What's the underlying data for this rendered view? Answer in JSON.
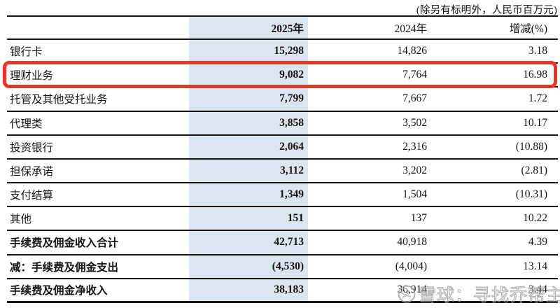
{
  "meta": {
    "unit_note": "(除另有标明外，人民币百万元)"
  },
  "table": {
    "columns": [
      "",
      "2025年",
      "2024年",
      "增减(%)"
    ],
    "rows": [
      {
        "label": "银行卡",
        "y2025": "15,298",
        "y2024": "14,826",
        "chg": "3.18",
        "bold": false,
        "highlight": false
      },
      {
        "label": "理财业务",
        "y2025": "9,082",
        "y2024": "7,764",
        "chg": "16.98",
        "bold": false,
        "highlight": true
      },
      {
        "label": "托管及其他受托业务",
        "y2025": "7,799",
        "y2024": "7,667",
        "chg": "1.72",
        "bold": false,
        "highlight": false
      },
      {
        "label": "代理类",
        "y2025": "3,858",
        "y2024": "3,502",
        "chg": "10.17",
        "bold": false,
        "highlight": false
      },
      {
        "label": "投资银行",
        "y2025": "2,064",
        "y2024": "2,316",
        "chg": "(10.88)",
        "bold": false,
        "highlight": false
      },
      {
        "label": "担保承诺",
        "y2025": "3,112",
        "y2024": "3,202",
        "chg": "(2.81)",
        "bold": false,
        "highlight": false
      },
      {
        "label": "支付结算",
        "y2025": "1,349",
        "y2024": "1,504",
        "chg": "(10.31)",
        "bold": false,
        "highlight": false
      },
      {
        "label": "其他",
        "y2025": "151",
        "y2024": "137",
        "chg": "10.22",
        "bold": false,
        "highlight": false
      },
      {
        "label": "手续费及佣金收入合计",
        "y2025": "42,713",
        "y2024": "40,918",
        "chg": "4.39",
        "bold": true,
        "highlight": false
      },
      {
        "label": "减：手续费及佣金支出",
        "y2025": "(4,530)",
        "y2024": "(4,004)",
        "chg": "13.14",
        "bold": true,
        "highlight": false
      },
      {
        "label": "手续费及佣金净收入",
        "y2025": "38,183",
        "y2024": "36,914",
        "chg": "3.44",
        "bold": true,
        "highlight": false
      }
    ]
  },
  "watermark": {
    "icon": "xueqiu-logo-icon",
    "text": "雪球：寻找乔帮主"
  },
  "colors": {
    "band": "#dce4ef",
    "highlight_border": "#ec342b",
    "line": "#151515",
    "watermark_gray": "#a2a2a2",
    "text": "#141414"
  }
}
